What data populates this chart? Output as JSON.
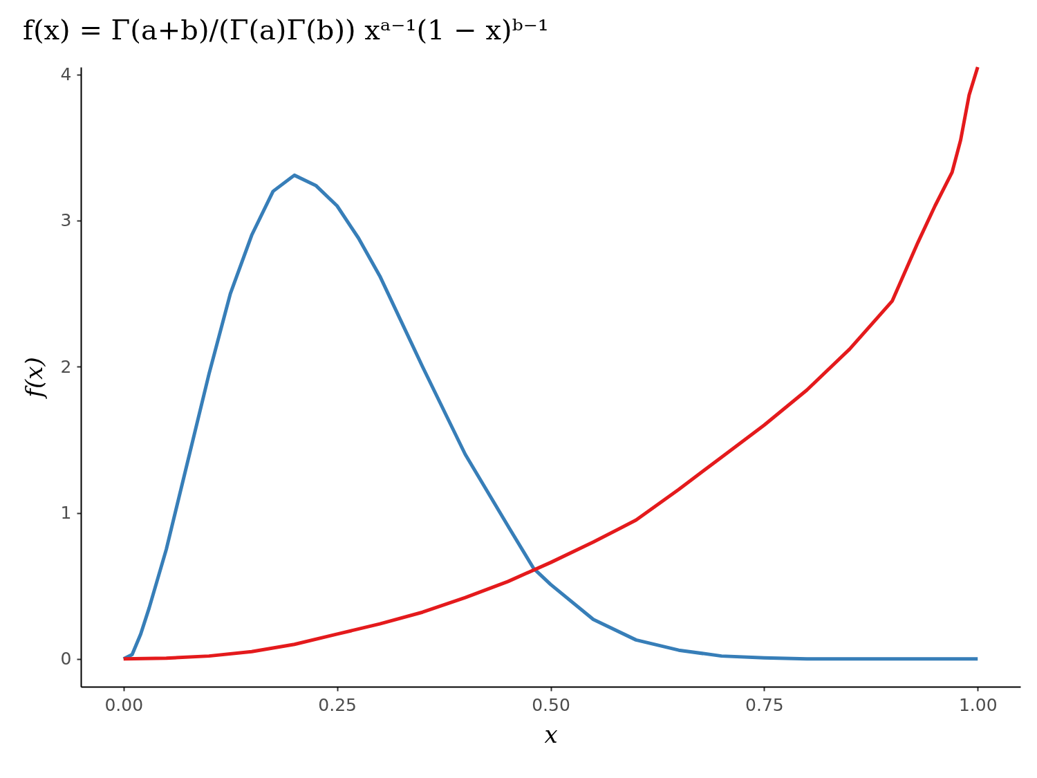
{
  "chart_data": {
    "type": "line",
    "title": "f(x) = Γ(a+b)/(Γ(a)Γ(b)) xᵃ⁻¹(1 − x)ᵇ⁻¹",
    "xlabel": "x",
    "ylabel": "f(x)",
    "xlim": [
      -0.05,
      1.05
    ],
    "ylim": [
      -0.19,
      4.05
    ],
    "xticks": [
      {
        "value": 0,
        "label": "0.00"
      },
      {
        "value": 0.25,
        "label": "0.25"
      },
      {
        "value": 0.5,
        "label": "0.50"
      },
      {
        "value": 0.75,
        "label": "0.75"
      },
      {
        "value": 1,
        "label": "1.00"
      }
    ],
    "yticks": [
      0,
      1,
      2,
      3,
      4
    ],
    "grid": false,
    "series": [
      {
        "color": "#377eb8",
        "x": [
          0,
          0.01,
          0.02,
          0.03,
          0.05,
          0.075,
          0.1,
          0.125,
          0.15,
          0.175,
          0.2,
          0.225,
          0.25,
          0.275,
          0.3,
          0.35,
          0.4,
          0.45,
          0.48,
          0.5,
          0.55,
          0.6,
          0.65,
          0.7,
          0.75,
          0.8,
          0.9,
          1
        ],
        "values": [
          0,
          0.03,
          0.17,
          0.35,
          0.75,
          1.35,
          1.95,
          2.5,
          2.9,
          3.2,
          3.31,
          3.24,
          3.1,
          2.88,
          2.62,
          2.0,
          1.4,
          0.91,
          0.62,
          0.51,
          0.27,
          0.13,
          0.06,
          0.02,
          0.007,
          0,
          0,
          0
        ]
      },
      {
        "color": "#e41a1c",
        "x": [
          0,
          0.05,
          0.1,
          0.15,
          0.2,
          0.25,
          0.3,
          0.35,
          0.4,
          0.45,
          0.5,
          0.55,
          0.6,
          0.65,
          0.7,
          0.75,
          0.8,
          0.85,
          0.9,
          0.93,
          0.95,
          0.97,
          0.98,
          0.99,
          1
        ],
        "values": [
          0,
          0.005,
          0.02,
          0.05,
          0.1,
          0.17,
          0.24,
          0.32,
          0.42,
          0.53,
          0.66,
          0.8,
          0.95,
          1.16,
          1.38,
          1.6,
          1.84,
          2.12,
          2.45,
          2.85,
          3.1,
          3.33,
          3.55,
          3.86,
          4.05
        ]
      }
    ]
  }
}
